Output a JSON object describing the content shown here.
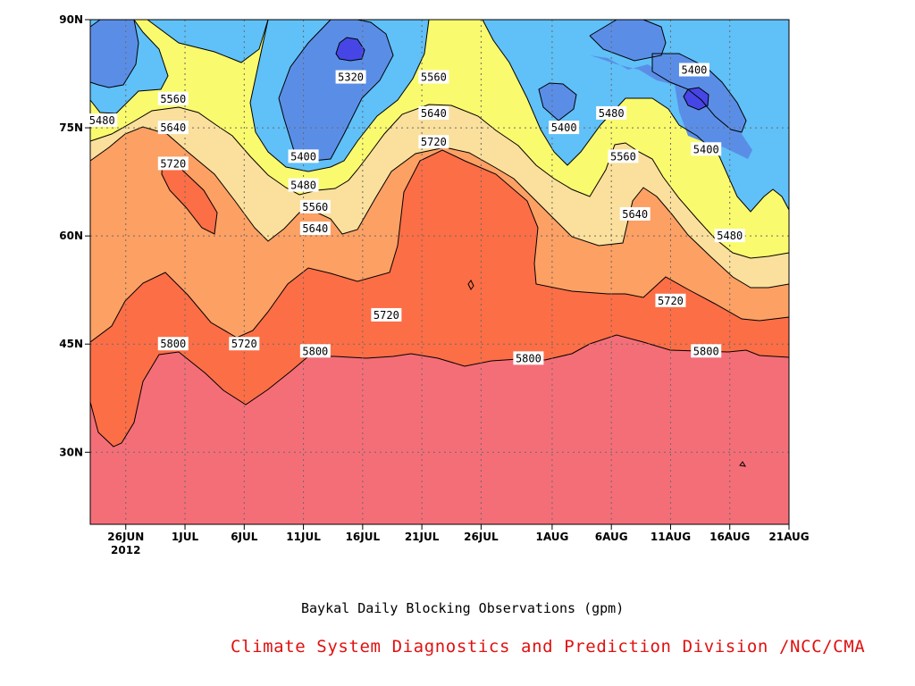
{
  "chart_data": {
    "type": "contour",
    "title": "Baykal Daily Blocking Observations (gpm)",
    "credit": "Climate System Diagnostics and Prediction Division /NCC/CMA",
    "x_axis": {
      "ticks": [
        "26JUN",
        "1JUL",
        "6JUL",
        "11JUL",
        "16JUL",
        "21JUL",
        "26JUL",
        "1AUG",
        "6AUG",
        "11AUG",
        "16AUG",
        "21AUG"
      ],
      "year_label": "2012",
      "range": [
        "2012-06-23",
        "2012-08-21"
      ]
    },
    "y_axis": {
      "ticks": [
        "30N",
        "45N",
        "60N",
        "75N",
        "90N"
      ],
      "range": [
        20,
        90
      ],
      "unit": "degrees latitude N"
    },
    "levels": [
      5320,
      5400,
      5480,
      5560,
      5640,
      5720,
      5800
    ],
    "fill_colors": {
      "below_5320": "#4646e6",
      "5320_5400": "#5a8ee6",
      "5400_5480": "#60c0f8",
      "5480_5560": "#fafa6e",
      "5560_5640": "#fae09c",
      "5640_5720": "#fca064",
      "5720_5800": "#fc6e46",
      "above_5800": "#f46e78"
    },
    "contour_labels": [
      {
        "text": "5320",
        "date": "2012-07-15",
        "lat": 82
      },
      {
        "text": "5560",
        "date": "2012-07-22",
        "lat": 82
      },
      {
        "text": "5400",
        "date": "2012-08-13",
        "lat": 83
      },
      {
        "text": "5560",
        "date": "2012-06-30",
        "lat": 79
      },
      {
        "text": "5480",
        "date": "2012-06-24",
        "lat": 76
      },
      {
        "text": "5640",
        "date": "2012-07-22",
        "lat": 77
      },
      {
        "text": "5480",
        "date": "2012-08-06",
        "lat": 77
      },
      {
        "text": "5640",
        "date": "2012-06-30",
        "lat": 75
      },
      {
        "text": "5400",
        "date": "2012-08-02",
        "lat": 75
      },
      {
        "text": "5720",
        "date": "2012-07-22",
        "lat": 73
      },
      {
        "text": "5400",
        "date": "2012-07-11",
        "lat": 71
      },
      {
        "text": "5560",
        "date": "2012-08-07",
        "lat": 71
      },
      {
        "text": "5400",
        "date": "2012-08-14",
        "lat": 72
      },
      {
        "text": "5720",
        "date": "2012-06-30",
        "lat": 70
      },
      {
        "text": "5480",
        "date": "2012-07-11",
        "lat": 67
      },
      {
        "text": "5560",
        "date": "2012-07-12",
        "lat": 64
      },
      {
        "text": "5640",
        "date": "2012-08-08",
        "lat": 63
      },
      {
        "text": "5640",
        "date": "2012-07-12",
        "lat": 61
      },
      {
        "text": "5480",
        "date": "2012-08-16",
        "lat": 60
      },
      {
        "text": "5720",
        "date": "2012-08-11",
        "lat": 51
      },
      {
        "text": "5720",
        "date": "2012-07-18",
        "lat": 49
      },
      {
        "text": "5800",
        "date": "2012-06-30",
        "lat": 45
      },
      {
        "text": "5720",
        "date": "2012-07-06",
        "lat": 45
      },
      {
        "text": "5800",
        "date": "2012-07-12",
        "lat": 44
      },
      {
        "text": "5800",
        "date": "2012-07-30",
        "lat": 43
      },
      {
        "text": "5800",
        "date": "2012-08-14",
        "lat": 44
      }
    ]
  }
}
